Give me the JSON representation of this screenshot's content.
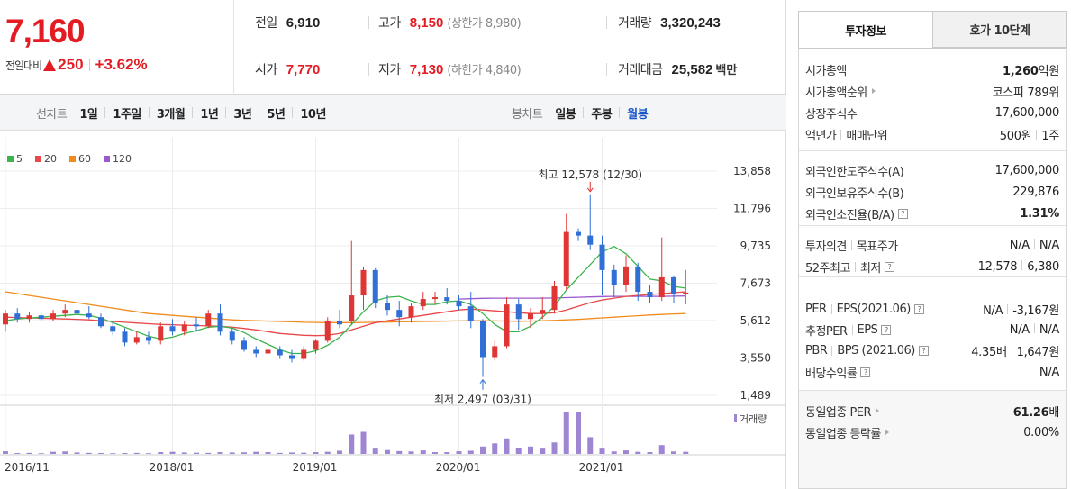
{
  "quote": {
    "price": "7,160",
    "change_label": "전일대비",
    "change_amount": "250",
    "change_pct": "+3.62%",
    "prev_close_label": "전일",
    "prev_close": "6,910",
    "open_label": "시가",
    "open": "7,770",
    "high_label": "고가",
    "high": "8,150",
    "upper_limit": "(상한가 8,980)",
    "low_label": "저가",
    "low": "7,130",
    "lower_limit": "(하한가 4,840)",
    "volume_label": "거래량",
    "volume": "3,320,243",
    "amount_label": "거래대금",
    "amount": "25,582",
    "amount_unit": "백만"
  },
  "toolbar": {
    "line_title": "선차트",
    "line_periods": [
      "1일",
      "1주일",
      "3개월",
      "1년",
      "3년",
      "5년",
      "10년"
    ],
    "candle_title": "봉차트",
    "candle_periods": [
      "일봉",
      "주봉",
      "월봉"
    ],
    "candle_active": "월봉"
  },
  "chart_data": {
    "type": "candlestick",
    "interval": "monthly",
    "legend": [
      {
        "name": "5",
        "color": "#3cb44b"
      },
      {
        "name": "20",
        "color": "#e8484a"
      },
      {
        "name": "60",
        "color": "#f08c1e"
      },
      {
        "name": "120",
        "color": "#9b59d0"
      }
    ],
    "y_ticks": [
      "13,858",
      "11,796",
      "9,735",
      "7,673",
      "5,612",
      "3,550",
      "1,489"
    ],
    "y_tick_values": [
      13858,
      11796,
      9735,
      7673,
      5612,
      3550,
      1489
    ],
    "ylim": [
      1489,
      13858
    ],
    "x_ticks": [
      "2016/11",
      "2018/01",
      "2019/01",
      "2020/01",
      "2021/01"
    ],
    "x_tick_index": [
      0,
      14,
      26,
      38,
      50
    ],
    "volume_label": "거래량",
    "annotations": {
      "high_text": "최고 12,578 (12/30)",
      "high_value": 12578,
      "high_index": 49,
      "low_text": "최저 2,497 (03/31)",
      "low_value": 2497,
      "low_index": 40
    },
    "ohlc": [
      [
        5400,
        6200,
        5000,
        6000
      ],
      [
        6000,
        6300,
        5500,
        5700
      ],
      [
        5700,
        6100,
        5500,
        5900
      ],
      [
        5900,
        6000,
        5600,
        5700
      ],
      [
        5700,
        6200,
        5600,
        6000
      ],
      [
        6000,
        6500,
        5800,
        6200
      ],
      [
        6200,
        6800,
        5900,
        6000
      ],
      [
        6000,
        6400,
        5700,
        5800
      ],
      [
        5800,
        6000,
        5200,
        5300
      ],
      [
        5300,
        5600,
        4800,
        5000
      ],
      [
        5000,
        5200,
        4200,
        4400
      ],
      [
        4400,
        5000,
        4300,
        4700
      ],
      [
        4700,
        5000,
        4300,
        4500
      ],
      [
        4500,
        5500,
        4300,
        5300
      ],
      [
        5300,
        5700,
        4800,
        5000
      ],
      [
        5000,
        5600,
        4800,
        5400
      ],
      [
        5400,
        5800,
        5000,
        5300
      ],
      [
        5300,
        6200,
        5200,
        6000
      ],
      [
        6000,
        6500,
        4800,
        5000
      ],
      [
        5000,
        5200,
        4300,
        4500
      ],
      [
        4500,
        4700,
        3900,
        4000
      ],
      [
        4000,
        4200,
        3600,
        3800
      ],
      [
        3800,
        4100,
        3600,
        4000
      ],
      [
        4000,
        4200,
        3500,
        3700
      ],
      [
        3700,
        4000,
        3300,
        3500
      ],
      [
        3500,
        4200,
        3400,
        4000
      ],
      [
        4000,
        4600,
        3800,
        4500
      ],
      [
        4500,
        5800,
        4400,
        5600
      ],
      [
        5600,
        6200,
        5200,
        5400
      ],
      [
        5600,
        10000,
        5400,
        7000
      ],
      [
        7000,
        8600,
        6200,
        8400
      ],
      [
        8400,
        8500,
        6300,
        6600
      ],
      [
        6600,
        7000,
        5900,
        6200
      ],
      [
        6200,
        6700,
        5300,
        5800
      ],
      [
        5800,
        6600,
        5500,
        6400
      ],
      [
        6400,
        7200,
        6200,
        6800
      ],
      [
        6800,
        7200,
        6500,
        6900
      ],
      [
        6900,
        7400,
        6500,
        6700
      ],
      [
        6700,
        7000,
        6200,
        6400
      ],
      [
        6400,
        7200,
        5200,
        5600
      ],
      [
        5600,
        5700,
        2500,
        3600
      ],
      [
        3600,
        4500,
        3400,
        4200
      ],
      [
        4200,
        6900,
        4100,
        6500
      ],
      [
        6500,
        6800,
        5100,
        5700
      ],
      [
        5700,
        6300,
        5200,
        6000
      ],
      [
        6000,
        6900,
        5700,
        6200
      ],
      [
        6200,
        7800,
        6000,
        7500
      ],
      [
        7500,
        11500,
        7300,
        10500
      ],
      [
        10500,
        10700,
        10000,
        10300
      ],
      [
        10300,
        12578,
        9500,
        9800
      ],
      [
        9800,
        10300,
        7000,
        8400
      ],
      [
        8400,
        8700,
        6900,
        7600
      ],
      [
        7600,
        9200,
        7200,
        8600
      ],
      [
        8600,
        8800,
        6700,
        7200
      ],
      [
        7200,
        7600,
        6600,
        6900
      ],
      [
        6900,
        10200,
        6700,
        8000
      ],
      [
        8000,
        8100,
        6600,
        7100
      ],
      [
        7100,
        8400,
        6500,
        7160
      ]
    ],
    "volume": [
      15,
      5,
      6,
      4,
      12,
      14,
      8,
      6,
      5,
      4,
      5,
      6,
      4,
      10,
      12,
      8,
      7,
      6,
      10,
      8,
      9,
      12,
      10,
      6,
      8,
      7,
      10,
      12,
      18,
      110,
      125,
      30,
      22,
      16,
      14,
      20,
      10,
      10,
      15,
      18,
      42,
      60,
      88,
      32,
      42,
      30,
      65,
      235,
      240,
      95,
      30,
      14,
      20,
      12,
      10,
      50,
      14,
      12
    ],
    "ma5": [
      5600,
      5700,
      5750,
      5800,
      5850,
      5900,
      5950,
      5900,
      5750,
      5500,
      5250,
      5000,
      4750,
      4600,
      4700,
      4900,
      5050,
      5250,
      5300,
      5200,
      4950,
      4600,
      4300,
      4000,
      3800,
      3800,
      3950,
      4250,
      4700,
      5400,
      6100,
      6700,
      6900,
      6950,
      6700,
      6500,
      6500,
      6650,
      6700,
      6500,
      6000,
      5400,
      5000,
      5000,
      5300,
      5800,
      6400,
      7300,
      8000,
      8700,
      9400,
      9700,
      9300,
      8600,
      7900,
      7800,
      7500,
      7400
    ],
    "ma20": [
      5800,
      5780,
      5760,
      5740,
      5720,
      5700,
      5680,
      5650,
      5600,
      5560,
      5520,
      5480,
      5440,
      5400,
      5380,
      5360,
      5340,
      5320,
      5300,
      5250,
      5180,
      5100,
      5000,
      4900,
      4850,
      4800,
      4780,
      4800,
      4900,
      5100,
      5300,
      5500,
      5600,
      5700,
      5800,
      5900,
      6000,
      6100,
      6200,
      6250,
      6200,
      6150,
      6100,
      6050,
      6000,
      6000,
      6050,
      6200,
      6400,
      6600,
      6750,
      6850,
      6950,
      7000,
      7050,
      7100,
      7150,
      7200
    ],
    "ma60": [
      7200,
      7100,
      7000,
      6900,
      6800,
      6700,
      6600,
      6500,
      6400,
      6300,
      6200,
      6100,
      6000,
      5950,
      5900,
      5850,
      5800,
      5750,
      5700,
      5650,
      5620,
      5600,
      5580,
      5560,
      5540,
      5520,
      5510,
      5500,
      5500,
      5500,
      5510,
      5520,
      5530,
      5540,
      5550,
      5560,
      5570,
      5580,
      5590,
      5600,
      5600,
      5590,
      5580,
      5570,
      5580,
      5600,
      5620,
      5650,
      5680,
      5720,
      5760,
      5800,
      5840,
      5880,
      5920,
      5950,
      5980,
      6000
    ],
    "ma120": [
      null,
      null,
      null,
      null,
      null,
      null,
      null,
      null,
      null,
      null,
      null,
      null,
      null,
      null,
      null,
      null,
      null,
      null,
      null,
      null,
      null,
      null,
      null,
      null,
      null,
      null,
      null,
      null,
      null,
      null,
      null,
      null,
      null,
      null,
      null,
      null,
      null,
      null,
      6800,
      6820,
      6840,
      6850,
      6850,
      6850,
      6850,
      6850,
      6860,
      6880,
      6900,
      6920,
      6940,
      6950,
      6950,
      6950,
      6950,
      6950,
      6960,
      6970
    ]
  },
  "side": {
    "tab_info": "투자정보",
    "tab_order": "호가 10단계",
    "market_cap_label": "시가총액",
    "market_cap_value": "1,260",
    "market_cap_unit": "억원",
    "cap_rank_label": "시가총액순위",
    "cap_rank_value": "코스피 789위",
    "shares_label": "상장주식수",
    "shares_value": "17,600,000",
    "face_label": "액면가",
    "unit_label": "매매단위",
    "face_value": "500원",
    "unit_value": "1주",
    "foreign_limit_label": "외국인한도주식수(A)",
    "foreign_limit_value": "17,600,000",
    "foreign_hold_label": "외국인보유주식수(B)",
    "foreign_hold_value": "229,876",
    "foreign_rate_label": "외국인소진율(B/A)",
    "foreign_rate_value": "1.31%",
    "opinion_label": "투자의견",
    "target_label": "목표주가",
    "opinion_value": "N/A",
    "target_value": "N/A",
    "w52_high_label": "52주최고",
    "w52_low_label": "최저",
    "w52_high_value": "12,578",
    "w52_low_value": "6,380",
    "per_label": "PER",
    "eps_label": "EPS(2021.06)",
    "per_value": "N/A",
    "eps_value": "-3,167원",
    "est_per_label": "추정PER",
    "est_eps_label": "EPS",
    "est_per_value": "N/A",
    "est_eps_value": "N/A",
    "pbr_label": "PBR",
    "bps_label": "BPS (2021.06)",
    "pbr_value": "4.35배",
    "bps_value": "1,647원",
    "dividend_label": "배당수익률",
    "dividend_value": "N/A",
    "ind_per_label": "동일업종 PER",
    "ind_per_value": "61.26",
    "ind_per_unit": "배",
    "ind_rate_label": "동일업종 등락률",
    "ind_rate_value": "0.00%"
  }
}
